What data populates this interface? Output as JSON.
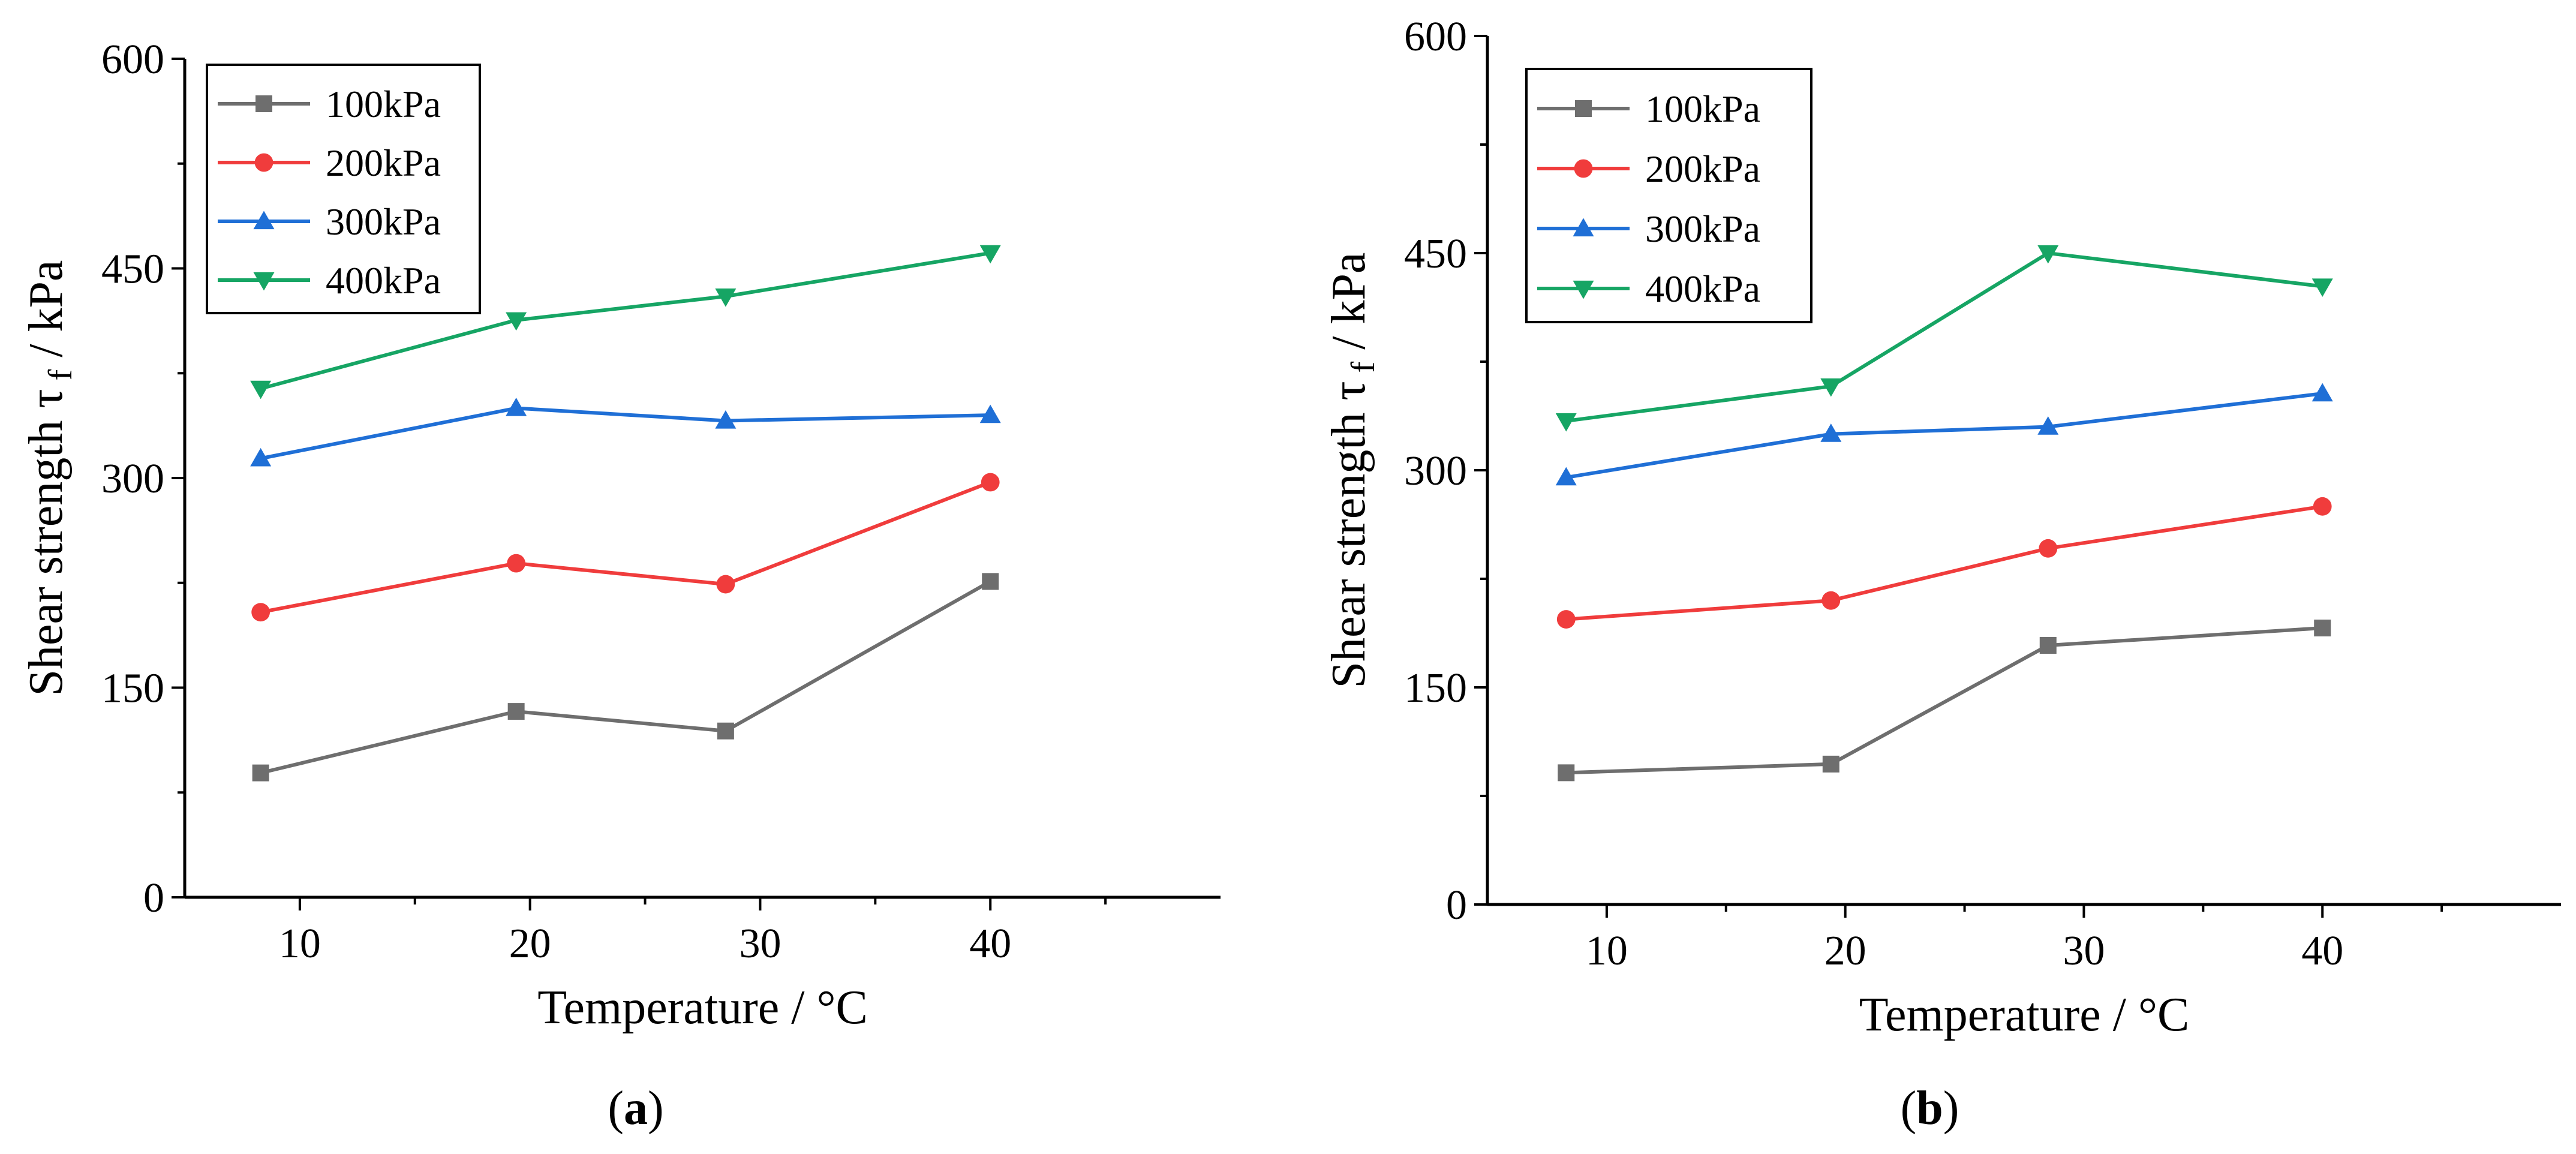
{
  "chart_data": [
    {
      "type": "line",
      "panel_label": "a",
      "xlabel": "Temperature / °C",
      "ylabel": "Shear strength τ f / kPa",
      "ylabel_main": "Shear strength τ",
      "ylabel_sub": "f",
      "ylabel_unit": " / kPa",
      "xlim": [
        5,
        50
      ],
      "ylim": [
        0,
        600
      ],
      "xticks": [
        10,
        20,
        30,
        40
      ],
      "yticks": [
        0,
        150,
        300,
        450,
        600
      ],
      "legend_position": "top-left",
      "x": [
        8.3,
        19.4,
        28.5,
        40
      ],
      "series": [
        {
          "name": "100kPa",
          "color": "#6e6e6e",
          "marker": "square",
          "values": [
            89,
            133,
            119,
            226
          ]
        },
        {
          "name": "200kPa",
          "color": "#f03c3c",
          "marker": "circle",
          "values": [
            204,
            239,
            224,
            297
          ]
        },
        {
          "name": "300kPa",
          "color": "#1f6fd6",
          "marker": "triangle-up",
          "values": [
            314,
            350,
            341,
            345
          ]
        },
        {
          "name": "400kPa",
          "color": "#16a564",
          "marker": "triangle-down",
          "values": [
            364,
            413,
            430,
            461
          ]
        }
      ]
    },
    {
      "type": "line",
      "panel_label": "b",
      "xlabel": "Temperature / °C",
      "ylabel": "Shear strength τ f / kPa",
      "ylabel_main": "Shear strength τ",
      "ylabel_sub": "f",
      "ylabel_unit": " / kPa",
      "xlim": [
        5,
        50
      ],
      "ylim": [
        0,
        600
      ],
      "xticks": [
        10,
        20,
        30,
        40
      ],
      "yticks": [
        0,
        150,
        300,
        450,
        600
      ],
      "legend_position": "top-left",
      "x": [
        8.3,
        19.4,
        28.5,
        40
      ],
      "series": [
        {
          "name": "100kPa",
          "color": "#6e6e6e",
          "marker": "square",
          "values": [
            91,
            97,
            179,
            191
          ]
        },
        {
          "name": "200kPa",
          "color": "#f03c3c",
          "marker": "circle",
          "values": [
            197,
            210,
            246,
            275
          ]
        },
        {
          "name": "300kPa",
          "color": "#1f6fd6",
          "marker": "triangle-up",
          "values": [
            295,
            325,
            330,
            353
          ]
        },
        {
          "name": "400kPa",
          "color": "#16a564",
          "marker": "triangle-down",
          "values": [
            334,
            358,
            450,
            427
          ]
        }
      ]
    }
  ]
}
